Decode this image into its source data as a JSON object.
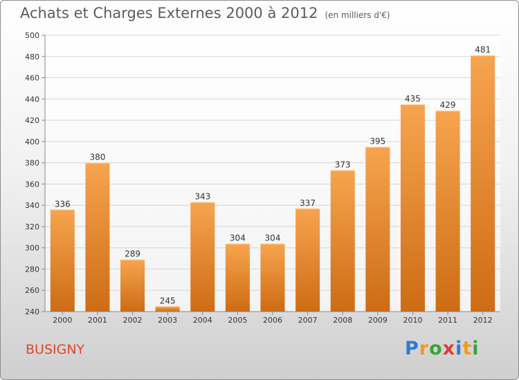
{
  "header": {
    "title": "Achats et Charges Externes 2000 à 2012",
    "unit": "(en milliers d'€)"
  },
  "footer": {
    "town": "BUSIGNY",
    "logo_letters": [
      "P",
      "r",
      "o",
      "x",
      "i",
      "t",
      "i"
    ],
    "logo_colors": [
      "#2e7bd1",
      "#f29a1f",
      "#3aa33a",
      "#e23b2e",
      "#2e7bd1",
      "#f29a1f",
      "#3aa33a"
    ]
  },
  "colors": {
    "bar_top": "#f7a44f",
    "bar_bottom": "#cd6c14",
    "grid": "#d6d6d6",
    "title": "#5b5b5b",
    "town": "#e1462a"
  },
  "chart_data": {
    "type": "bar",
    "title": "Achats et Charges Externes 2000 à 2012",
    "subtitle": "(en milliers d'€)",
    "xlabel": "",
    "ylabel": "",
    "categories": [
      "2000",
      "2001",
      "2002",
      "2003",
      "2004",
      "2005",
      "2006",
      "2007",
      "2008",
      "2009",
      "2010",
      "2011",
      "2012"
    ],
    "values": [
      336,
      380,
      289,
      245,
      343,
      304,
      304,
      337,
      373,
      395,
      435,
      429,
      481
    ],
    "ylim": [
      240,
      500
    ],
    "yticks": [
      240,
      260,
      280,
      300,
      320,
      340,
      360,
      380,
      400,
      420,
      440,
      460,
      480,
      500
    ],
    "grid": true,
    "legend": "none"
  }
}
